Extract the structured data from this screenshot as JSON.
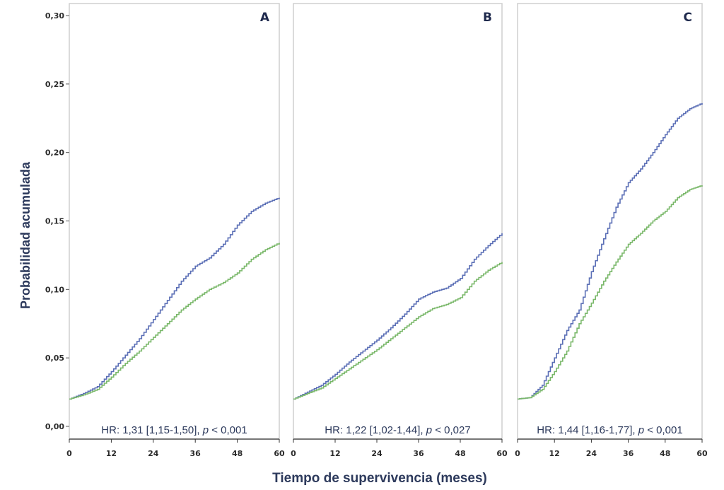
{
  "chart_data": {
    "type": "line",
    "ylabel": "Probabilidad acumulada",
    "xlabel": "Tiempo de supervivencia (meses)",
    "ylim": [
      0,
      0.3
    ],
    "xlim": [
      0,
      60
    ],
    "yticks": [
      "0,00",
      "0,05",
      "0,10",
      "0,15",
      "0,20",
      "0,25",
      "0,30"
    ],
    "xticks": [
      "0",
      "12",
      "24",
      "36",
      "48",
      "60"
    ],
    "grid": false,
    "colors": {
      "blue": "#5b6fb6",
      "green": "#7ab86a"
    },
    "panels": [
      {
        "label": "A",
        "annotation": {
          "prefix": "HR: 1,31 [1,15-1,50], ",
          "p": "p",
          "suffix": " < 0,001"
        },
        "series": [
          {
            "color": "blue",
            "x": [
              0,
              4,
              8,
              12,
              16,
              20,
              24,
              28,
              32,
              36,
              40,
              44,
              48,
              52,
              56,
              60
            ],
            "y": [
              0.02,
              0.024,
              0.029,
              0.04,
              0.052,
              0.064,
              0.078,
              0.092,
              0.106,
              0.117,
              0.123,
              0.133,
              0.147,
              0.157,
              0.163,
              0.167
            ]
          },
          {
            "color": "green",
            "x": [
              0,
              4,
              8,
              12,
              16,
              20,
              24,
              28,
              32,
              36,
              40,
              44,
              48,
              52,
              56,
              60
            ],
            "y": [
              0.02,
              0.023,
              0.027,
              0.036,
              0.046,
              0.055,
              0.065,
              0.075,
              0.085,
              0.093,
              0.1,
              0.105,
              0.112,
              0.122,
              0.129,
              0.134
            ]
          }
        ]
      },
      {
        "label": "B",
        "annotation": {
          "prefix": "HR: 1,22 [1,02-1,44], ",
          "p": "p",
          "suffix": " < 0,027"
        },
        "series": [
          {
            "color": "blue",
            "x": [
              0,
              4,
              8,
              12,
              16,
              20,
              24,
              28,
              32,
              36,
              40,
              44,
              48,
              52,
              56,
              60
            ],
            "y": [
              0.02,
              0.025,
              0.03,
              0.038,
              0.047,
              0.055,
              0.063,
              0.072,
              0.082,
              0.093,
              0.098,
              0.101,
              0.108,
              0.122,
              0.132,
              0.141
            ]
          },
          {
            "color": "green",
            "x": [
              0,
              4,
              8,
              12,
              16,
              20,
              24,
              28,
              32,
              36,
              40,
              44,
              48,
              52,
              56,
              60
            ],
            "y": [
              0.02,
              0.024,
              0.028,
              0.035,
              0.042,
              0.049,
              0.056,
              0.064,
              0.072,
              0.08,
              0.086,
              0.089,
              0.094,
              0.106,
              0.114,
              0.12
            ]
          }
        ]
      },
      {
        "label": "C",
        "annotation": {
          "prefix": "HR: 1,44 [1,16-1,77], ",
          "p": "p",
          "suffix": " < 0,001"
        },
        "series": [
          {
            "color": "blue",
            "x": [
              0,
              4,
              8,
              12,
              16,
              20,
              24,
              28,
              32,
              36,
              40,
              44,
              48,
              52,
              56,
              60
            ],
            "y": [
              0.02,
              0.021,
              0.03,
              0.05,
              0.07,
              0.085,
              0.113,
              0.137,
              0.16,
              0.178,
              0.188,
              0.2,
              0.213,
              0.225,
              0.232,
              0.236
            ]
          },
          {
            "color": "green",
            "x": [
              0,
              4,
              8,
              12,
              16,
              20,
              24,
              28,
              32,
              36,
              40,
              44,
              48,
              52,
              56,
              60
            ],
            "y": [
              0.02,
              0.021,
              0.027,
              0.04,
              0.055,
              0.075,
              0.09,
              0.106,
              0.12,
              0.133,
              0.141,
              0.15,
              0.157,
              0.167,
              0.173,
              0.176
            ]
          }
        ]
      }
    ]
  }
}
